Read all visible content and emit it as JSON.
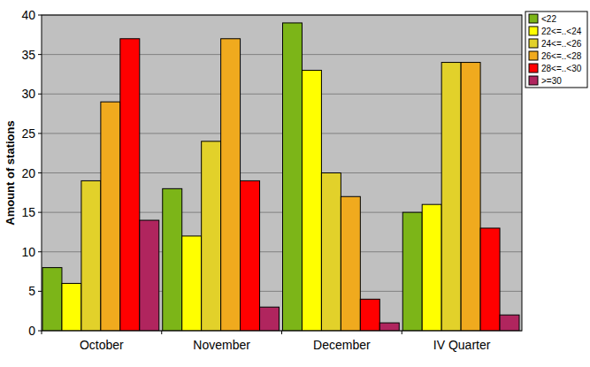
{
  "chart_data": {
    "type": "bar",
    "y_label": "Amount of stations",
    "categories": [
      "October",
      "November",
      "December",
      "IV Quarter"
    ],
    "series": [
      {
        "name": "<22",
        "color": "#7cb518",
        "values": [
          8,
          18,
          39,
          15
        ]
      },
      {
        "name": "22<=..<24",
        "color": "#ffff00",
        "values": [
          6,
          12,
          33,
          16
        ]
      },
      {
        "name": "24<=..<26",
        "color": "#e2d12a",
        "values": [
          19,
          24,
          20,
          34
        ]
      },
      {
        "name": "26<=..<28",
        "color": "#f0aa1e",
        "values": [
          29,
          37,
          17,
          34
        ]
      },
      {
        "name": "28<=..<30",
        "color": "#ff0000",
        "values": [
          37,
          19,
          4,
          13
        ]
      },
      {
        "name": ">=30",
        "color": "#b0255e",
        "values": [
          14,
          3,
          1,
          2
        ]
      }
    ],
    "ylim": [
      0,
      40
    ],
    "yticks": [
      0,
      5,
      10,
      15,
      20,
      25,
      30,
      35,
      40
    ],
    "grid": true,
    "legend": "top-right"
  }
}
